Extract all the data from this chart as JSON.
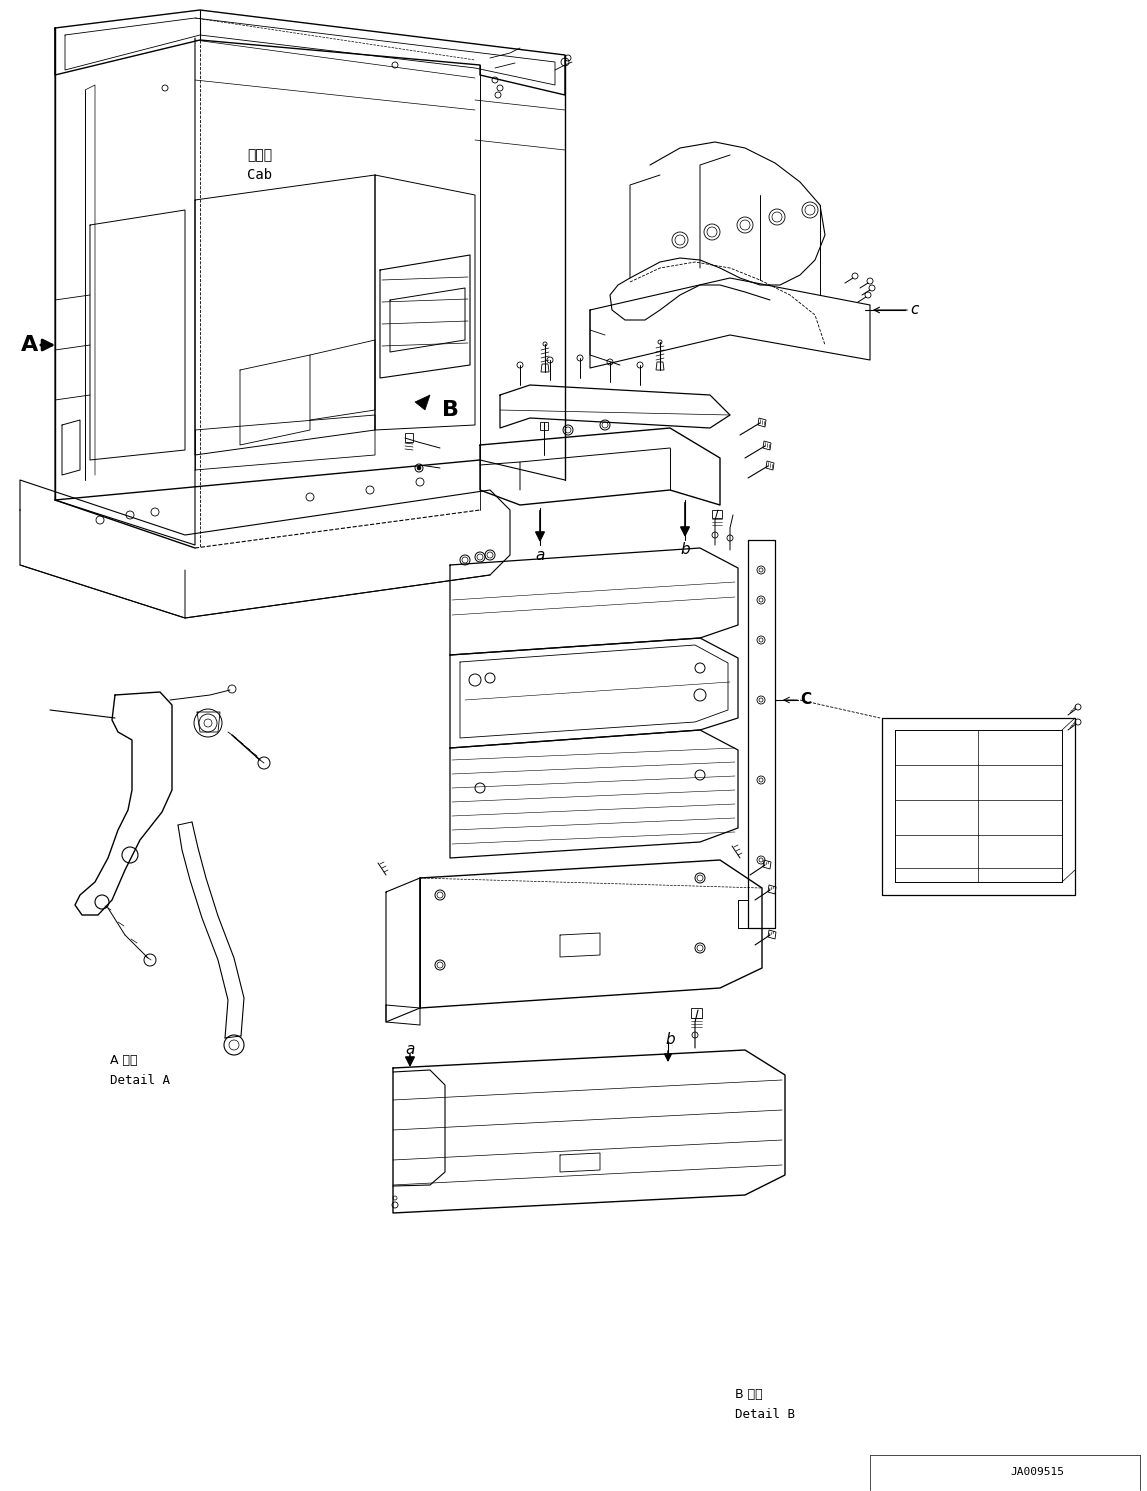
{
  "bg_color": "#ffffff",
  "line_color": "#000000",
  "figure_width": 11.47,
  "figure_height": 14.91,
  "dpi": 100,
  "cab_label_jp": "キャブ",
  "cab_label_en": "Cab",
  "detail_A_jp": "A 詳細",
  "detail_A_en": "Detail A",
  "detail_B_jp": "B 詳細",
  "detail_B_en": "Detail B",
  "part_number": "JA009515"
}
